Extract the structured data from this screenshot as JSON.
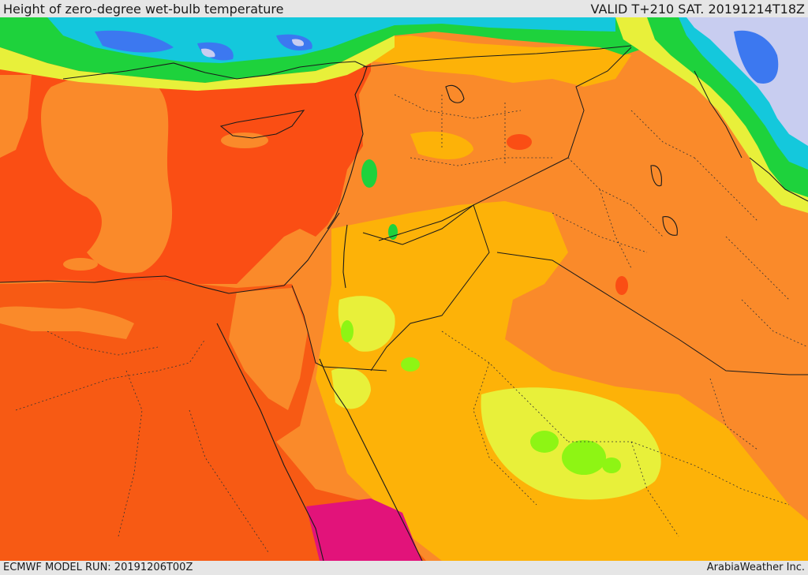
{
  "header": {
    "title": "Height of zero-degree wet-bulb temperature",
    "valid": "VALID T+210 SAT. 20191214T18Z"
  },
  "footer": {
    "model_run": "ECMWF MODEL RUN: 20191206T00Z",
    "credit": "ArabiaWeather Inc."
  },
  "colors": {
    "sea_deep": "#fa4e14",
    "land_red": "#f75a14",
    "orange": "#fa8a2a",
    "amber": "#fdb208",
    "yellow": "#e8f03a",
    "lime": "#8ef514",
    "green": "#1ed23c",
    "cyan": "#14c8dc",
    "blue": "#3c78f0",
    "lavender": "#c8cdf0",
    "magenta": "#e2137a",
    "border": "#1a1a1a"
  }
}
